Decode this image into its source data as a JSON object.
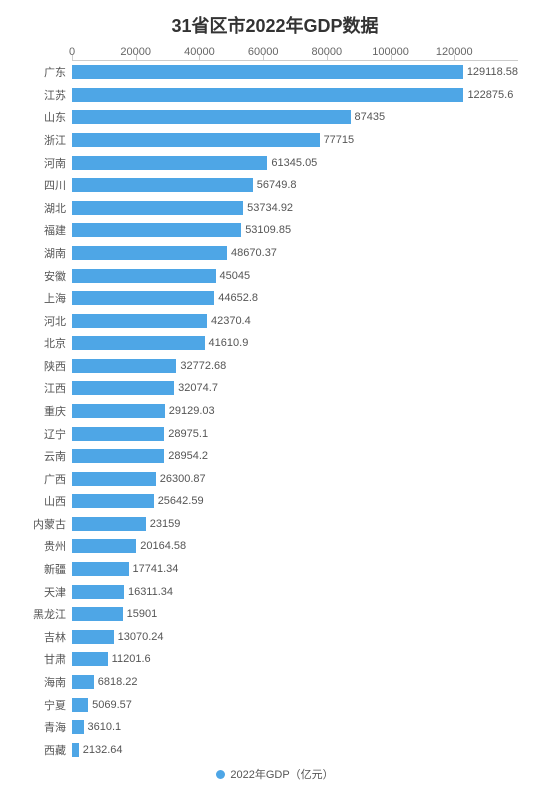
{
  "chart": {
    "type": "bar-horizontal",
    "title": "31省区市2022年GDP数据",
    "title_fontsize": 18,
    "title_color": "#333333",
    "bar_color": "#4ea6e6",
    "background_color": "#ffffff",
    "grid_color": "#cccccc",
    "text_color": "#666666",
    "label_fontsize": 11,
    "tick_fontsize": 11,
    "value_fontsize": 11,
    "xlim_min": 0,
    "xlim_max": 140000,
    "xtick_step": 20000,
    "xticks": [
      0,
      20000,
      40000,
      60000,
      80000,
      100000,
      120000
    ],
    "bar_height_ratio": 0.62,
    "categories": [
      "广东",
      "江苏",
      "山东",
      "浙江",
      "河南",
      "四川",
      "湖北",
      "福建",
      "湖南",
      "安徽",
      "上海",
      "河北",
      "北京",
      "陕西",
      "江西",
      "重庆",
      "辽宁",
      "云南",
      "广西",
      "山西",
      "内蒙古",
      "贵州",
      "新疆",
      "天津",
      "黑龙江",
      "吉林",
      "甘肃",
      "海南",
      "宁夏",
      "青海",
      "西藏"
    ],
    "values": [
      129118.58,
      122875.6,
      87435,
      77715,
      61345.05,
      56749.8,
      53734.92,
      53109.85,
      48670.37,
      45045,
      44652.8,
      42370.4,
      41610.9,
      32772.68,
      32074.7,
      29129.03,
      28975.1,
      28954.2,
      26300.87,
      25642.59,
      23159,
      20164.58,
      17741.34,
      16311.34,
      15901,
      13070.24,
      11201.6,
      6818.22,
      5069.57,
      3610.1,
      2132.64
    ],
    "value_labels": [
      "129118.58",
      "122875.6",
      "87435",
      "77715",
      "61345.05",
      "56749.8",
      "53734.92",
      "53109.85",
      "48670.37",
      "45045",
      "44652.8",
      "42370.4",
      "41610.9",
      "32772.68",
      "32074.7",
      "29129.03",
      "28975.1",
      "28954.2",
      "26300.87",
      "25642.59",
      "23159",
      "20164.58",
      "17741.34",
      "16311.34",
      "15901",
      "13070.24",
      "11201.6",
      "6818.22",
      "5069.57",
      "3610.1",
      "2132.64"
    ],
    "legend": {
      "label": "2022年GDP（亿元）",
      "dot_color": "#4ea6e6",
      "fontsize": 11
    }
  }
}
